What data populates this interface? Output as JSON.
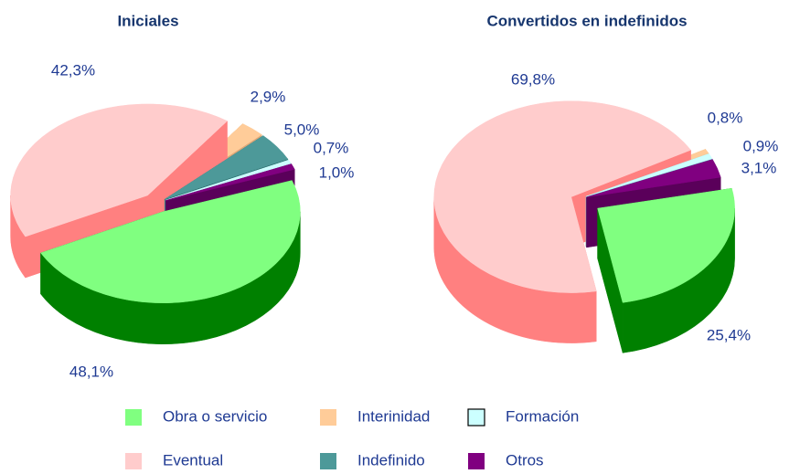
{
  "chart_data": [
    {
      "type": "pie",
      "title": "Iniciales",
      "categories": [
        "Obra o servicio",
        "Eventual",
        "Interinidad",
        "Indefinido",
        "Formación",
        "Otros"
      ],
      "values": [
        48.1,
        42.3,
        2.9,
        5.0,
        0.7,
        1.0
      ],
      "value_labels": [
        "48,1%",
        "42,3%",
        "2,9%",
        "5,0%",
        "0,7%",
        "1,0%"
      ],
      "colors": [
        "#80ff80",
        "#ffcccc",
        "#ffcc99",
        "#4d9999",
        "#ccffff",
        "#800080"
      ],
      "side_colors": [
        "#008000",
        "#ff8080",
        "#e0a878",
        "#2d6b6b",
        "#66cccc",
        "#5a005a"
      ]
    },
    {
      "type": "pie",
      "title": "Convertidos en indefinidos",
      "categories": [
        "Obra o servicio",
        "Eventual",
        "Interinidad",
        "Formación",
        "Otros"
      ],
      "values": [
        25.4,
        69.8,
        0.8,
        0.9,
        3.1
      ],
      "value_labels": [
        "25,4%",
        "69,8%",
        "0,8%",
        "0,9%",
        "3,1%"
      ],
      "colors": [
        "#80ff80",
        "#ffcccc",
        "#ffcc99",
        "#ccffff",
        "#800080"
      ],
      "side_colors": [
        "#008000",
        "#ff8080",
        "#e0a878",
        "#66cccc",
        "#5a005a"
      ]
    }
  ]
}
